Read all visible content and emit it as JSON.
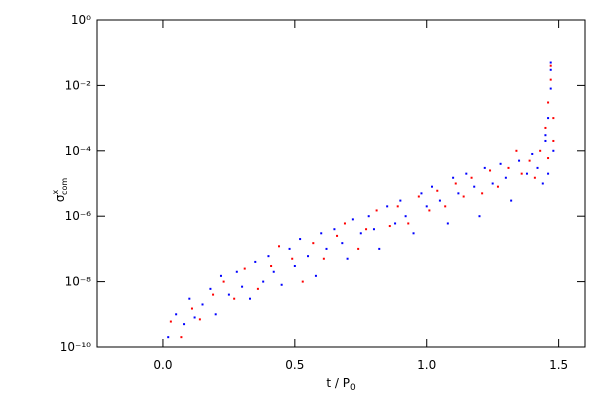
{
  "chart_data": {
    "type": "scatter",
    "xlabel": {
      "base": "t / P",
      "sub": "0"
    },
    "ylabel": {
      "base": "σ",
      "sup": "x",
      "sub": "com"
    },
    "xlim": [
      -0.25,
      1.6
    ],
    "xticks": [
      {
        "value": 0,
        "label": "0.0"
      },
      0.5,
      {
        "value": 1,
        "label": "1.0"
      },
      1.5
    ],
    "ylim": [
      1e-10,
      1
    ],
    "ylog": true,
    "yticks": [
      {
        "value": 1e-10,
        "label": "10⁻¹⁰"
      },
      {
        "value": 1e-08,
        "label": "10⁻⁸"
      },
      {
        "value": 1e-06,
        "label": "10⁻⁶"
      },
      {
        "value": 0.0001,
        "label": "10⁻⁴"
      },
      {
        "value": 0.01,
        "label": "10⁻²"
      },
      {
        "value": 1,
        "label": "10⁰"
      }
    ],
    "series": [
      {
        "color": "#0000ff",
        "x": [
          0.02,
          0.05,
          0.08,
          0.1,
          0.12,
          0.15,
          0.18,
          0.2,
          0.22,
          0.25,
          0.28,
          0.3,
          0.33,
          0.35,
          0.38,
          0.4,
          0.42,
          0.45,
          0.48,
          0.5,
          0.52,
          0.55,
          0.58,
          0.6,
          0.62,
          0.65,
          0.68,
          0.7,
          0.72,
          0.75,
          0.78,
          0.8,
          0.82,
          0.85,
          0.88,
          0.9,
          0.92,
          0.95,
          0.98,
          1.0,
          1.02,
          1.05,
          1.08,
          1.1,
          1.12,
          1.15,
          1.18,
          1.2,
          1.22,
          1.25,
          1.28,
          1.3,
          1.32,
          1.35,
          1.38,
          1.4,
          1.42,
          1.44,
          1.45,
          1.46,
          1.46,
          1.47,
          1.47,
          1.48,
          1.45,
          1.47
        ],
        "values": [
          2e-10,
          1e-09,
          5e-10,
          3e-09,
          8e-10,
          2e-09,
          6e-09,
          1e-09,
          1.5e-08,
          4e-09,
          2e-08,
          7e-09,
          3e-09,
          4e-08,
          1e-08,
          6e-08,
          2e-08,
          8e-09,
          1e-07,
          3e-08,
          2e-07,
          6e-08,
          1.5e-08,
          3e-07,
          1e-07,
          4e-07,
          1.5e-07,
          5e-08,
          8e-07,
          3e-07,
          1e-06,
          4e-07,
          1e-07,
          2e-06,
          6e-07,
          3e-06,
          1e-06,
          3e-07,
          5e-06,
          2e-06,
          8e-06,
          3e-06,
          6e-07,
          1.5e-05,
          5e-06,
          2e-05,
          8e-06,
          1e-06,
          3e-05,
          1e-05,
          4e-05,
          1.5e-05,
          3e-06,
          5e-05,
          2e-05,
          8e-05,
          3e-05,
          1e-05,
          0.0003,
          0.001,
          2e-05,
          0.008,
          0.03,
          0.0001,
          0.0002,
          0.05
        ]
      },
      {
        "color": "#ff0000",
        "x": [
          0.03,
          0.07,
          0.11,
          0.14,
          0.19,
          0.23,
          0.27,
          0.31,
          0.36,
          0.41,
          0.44,
          0.49,
          0.53,
          0.57,
          0.61,
          0.66,
          0.69,
          0.74,
          0.77,
          0.81,
          0.86,
          0.89,
          0.93,
          0.97,
          1.01,
          1.04,
          1.07,
          1.11,
          1.14,
          1.17,
          1.21,
          1.24,
          1.27,
          1.31,
          1.34,
          1.36,
          1.39,
          1.41,
          1.43,
          1.45,
          1.46,
          1.47,
          1.47,
          1.48,
          1.46,
          1.48
        ],
        "values": [
          6e-10,
          2e-10,
          1.5e-09,
          7e-10,
          4e-09,
          1e-08,
          3e-09,
          2.5e-08,
          6e-09,
          3e-08,
          1.2e-07,
          5e-08,
          1e-08,
          1.5e-07,
          5e-08,
          2.5e-07,
          6e-07,
          1e-07,
          4e-07,
          1.5e-06,
          5e-07,
          2e-06,
          6e-07,
          4e-06,
          1.5e-06,
          6e-06,
          2e-06,
          1e-05,
          4e-06,
          1.5e-05,
          5e-06,
          2.5e-05,
          8e-06,
          3e-05,
          0.0001,
          2e-05,
          5e-05,
          1.5e-05,
          0.0001,
          0.0005,
          0.003,
          0.015,
          0.04,
          0.0002,
          6e-05,
          0.001
        ]
      }
    ]
  }
}
